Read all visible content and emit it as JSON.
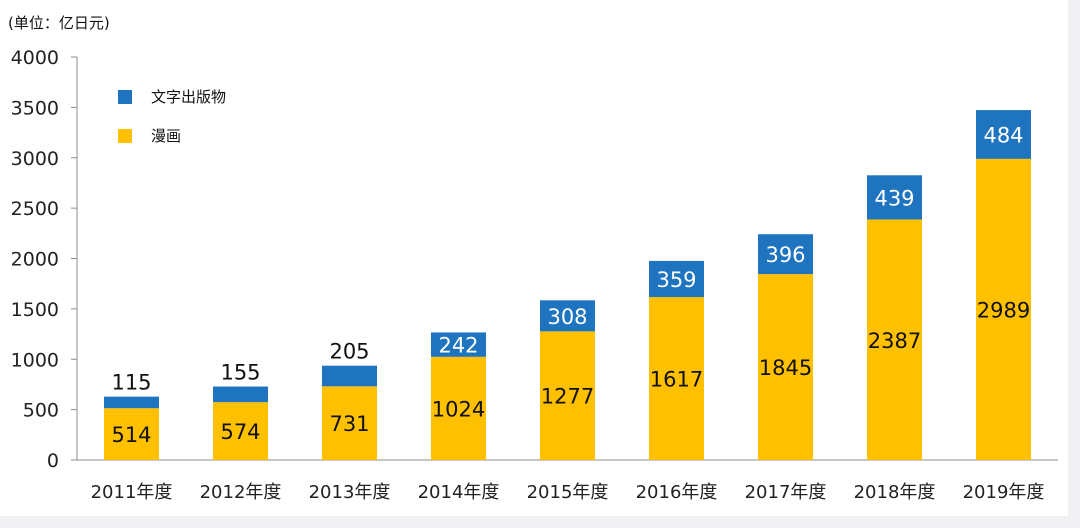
{
  "chart_data": {
    "type": "bar",
    "stacked": true,
    "unit_label": "(单位：亿日元)",
    "categories": [
      "2011年度",
      "2012年度",
      "2013年度",
      "2014年度",
      "2015年度",
      "2016年度",
      "2017年度",
      "2018年度",
      "2019年度"
    ],
    "series": [
      {
        "name": "漫画",
        "values": [
          514,
          574,
          731,
          1024,
          1277,
          1617,
          1845,
          2387,
          2989
        ],
        "color": "#ffc000"
      },
      {
        "name": "文字出版物",
        "values": [
          115,
          155,
          205,
          242,
          308,
          359,
          396,
          439,
          484
        ],
        "color": "#1f74c0"
      }
    ],
    "yticks": [
      0,
      500,
      1000,
      1500,
      2000,
      2500,
      3000,
      3500,
      4000
    ],
    "ylim": [
      0,
      4000
    ],
    "grid": false,
    "legend_position": "top-left",
    "legend_order": [
      "文字出版物",
      "漫画"
    ]
  }
}
